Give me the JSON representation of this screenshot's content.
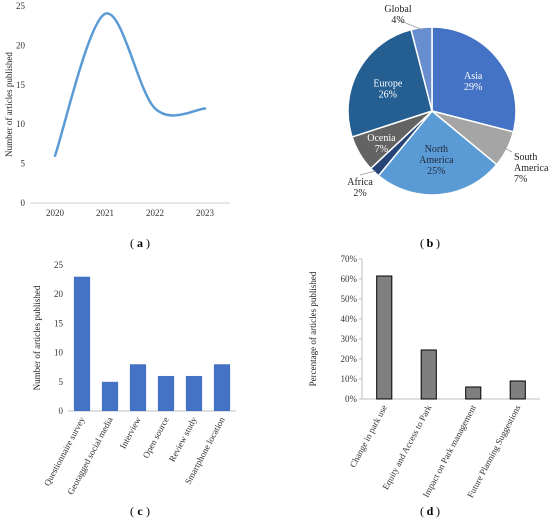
{
  "figure": {
    "captions": [
      "a",
      "b",
      "c",
      "d"
    ]
  },
  "chart_data": [
    {
      "id": "a",
      "type": "line",
      "ylabel": "Number of articles published",
      "xlabel": "",
      "x": [
        "2020",
        "2021",
        "2022",
        "2023"
      ],
      "values": [
        6,
        24,
        12,
        12
      ],
      "ylim": [
        0,
        25
      ],
      "yticks": [
        0,
        5,
        10,
        15,
        20,
        25
      ],
      "grid": false,
      "color": "#5b9bd5"
    },
    {
      "id": "b",
      "type": "pie",
      "slices": [
        {
          "name": "Asia",
          "value": 29,
          "label": "29%",
          "color": "#4472c4",
          "text_color": "#ffffff"
        },
        {
          "name": "South America",
          "value": 7,
          "label": "7%",
          "color": "#a5a5a5",
          "text_color": "#222222"
        },
        {
          "name": "North America",
          "value": 25,
          "label": "25%",
          "color": "#5b9bd5",
          "text_color": "#1f2b3d"
        },
        {
          "name": "Africa",
          "value": 2,
          "label": "2%",
          "color": "#264478",
          "text_color": "#222222"
        },
        {
          "name": "Ocenia",
          "value": 7,
          "label": "7%",
          "color": "#636363",
          "text_color": "#ffffff"
        },
        {
          "name": "Europe",
          "value": 26,
          "label": "26%",
          "color": "#255e91",
          "text_color": "#ffffff"
        },
        {
          "name": "Global",
          "value": 4,
          "label": "4%",
          "color": "#698ed0",
          "text_color": "#222222"
        }
      ]
    },
    {
      "id": "c",
      "type": "bar",
      "ylabel": "Number of articles published",
      "xlabel": "",
      "categories": [
        "Questionnaire survey",
        "Geotagged social media",
        "Interview",
        "Open source",
        "Review study",
        "Smartphone location"
      ],
      "values": [
        23,
        5,
        8,
        6,
        6,
        8
      ],
      "ylim": [
        0,
        25
      ],
      "yticks": [
        0,
        5,
        10,
        15,
        20,
        25
      ],
      "grid": false,
      "color": "#4472c4"
    },
    {
      "id": "d",
      "type": "bar",
      "ylabel": "Percentage of articles published",
      "xlabel": "",
      "categories": [
        "Change in park use",
        "Equity and Access to Park",
        "Impact on Park management",
        "Future Planning Suggestions"
      ],
      "values": [
        61.5,
        24.5,
        6,
        9
      ],
      "ylim": [
        0,
        70
      ],
      "yticks": [
        "0%",
        "10%",
        "20%",
        "30%",
        "40%",
        "50%",
        "60%",
        "70%"
      ],
      "grid": false,
      "color": "#7f7f7f"
    }
  ]
}
